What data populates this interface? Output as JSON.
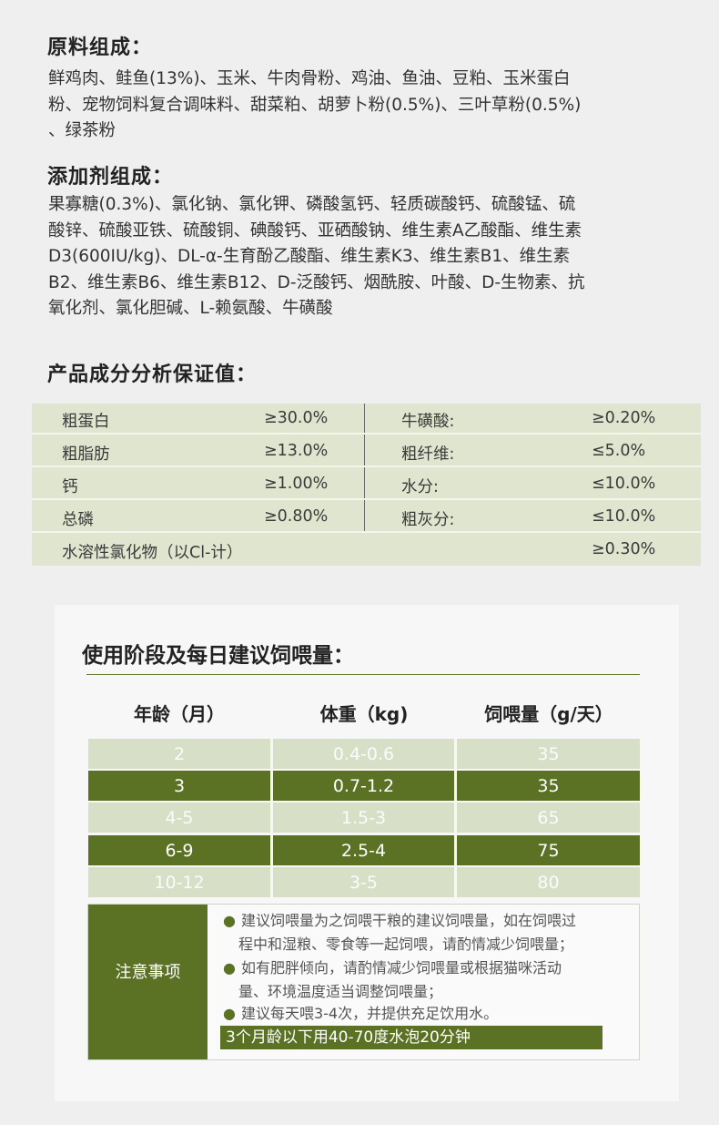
{
  "ingredients": {
    "title": "原料组成：",
    "lines": [
      "鲜鸡肉、鲑鱼(13%)、玉米、牛肉骨粉、鸡油、鱼油、豆粕、玉米蛋白",
      "粉、宠物饲料复合调味料、甜菜粕、胡萝卜粉(0.5%)、三叶草粉(0.5%)",
      "、绿茶粉"
    ]
  },
  "additives": {
    "title": "添加剂组成：",
    "lines": [
      "果寡糖(0.3%)、氯化钠、氯化钾、磷酸氢钙、轻质碳酸钙、硫酸锰、硫",
      "酸锌、硫酸亚铁、硫酸铜、碘酸钙、亚硒酸钠、维生素A乙酸酯、维生素",
      "D3(600IU/kg)、DL-α-生育酚乙酸酯、维生素K3、维生素B1、维生素",
      "B2、维生素B6、维生素B12、D-泛酸钙、烟酰胺、叶酸、D-生物素、抗",
      "氧化剂、氯化胆碱、L-赖氨酸、牛磺酸"
    ]
  },
  "guarantee": {
    "title": "产品成分分析保证值：",
    "rows": [
      {
        "l_name": "粗蛋白",
        "l_val": "≥30.0%",
        "r_name": "牛磺酸:",
        "r_val": "≥0.20%"
      },
      {
        "l_name": "粗脂肪",
        "l_val": "≥13.0%",
        "r_name": "粗纤维:",
        "r_val": "≤5.0%"
      },
      {
        "l_name": "钙",
        "l_val": "≥1.00%",
        "r_name": "水分:",
        "r_val": "≤10.0%"
      },
      {
        "l_name": "总磷",
        "l_val": "≥0.80%",
        "r_name": "粗灰分:",
        "r_val": "≤10.0%"
      }
    ],
    "last_row": {
      "name": "水溶性氯化物（以Cl-计）",
      "val": "≥0.30%"
    }
  },
  "feeding": {
    "title": "使用阶段及每日建议饲喂量：",
    "headers": [
      "年龄（月）",
      "体重（kg)",
      "饲喂量（g/天）"
    ],
    "rows": [
      [
        "2",
        "0.4-0.6",
        "35"
      ],
      [
        "3",
        "0.7-1.2",
        "35"
      ],
      [
        "4-5",
        "1.5-3",
        "65"
      ],
      [
        "6-9",
        "2.5-4",
        "75"
      ],
      [
        "10-12",
        "3-5",
        "80"
      ]
    ]
  },
  "notes": {
    "label": "注意事项",
    "b1_line1": "建议饲喂量为之饲喂干粮的建议饲喂量，如在饲喂过",
    "b1_line2": "程中和湿粮、零食等一起饲喂，请酌情减少饲喂量；",
    "b2_line1": "如有肥胖倾向，请酌情减少饲喂量或根据猫咪活动",
    "b2_line2": "量、环境温度适当调整饲喂量；",
    "b3_line1": "建议每天喂3-4次，并提供充足饮用水。",
    "highlight": "3个月龄以下用40-70度水泡20分钟"
  },
  "colors": {
    "accent_green": "#5b7224",
    "light_green": "#d7e0c7",
    "table_green": "#dfe5ce"
  }
}
